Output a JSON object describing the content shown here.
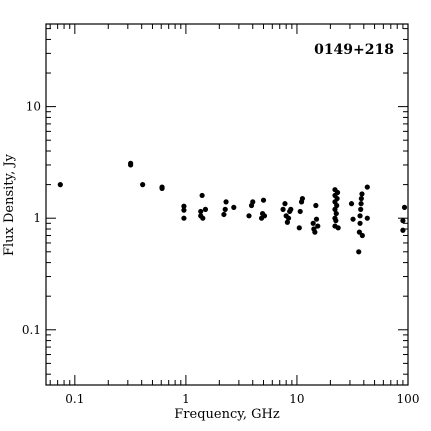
{
  "chart_data": {
    "type": "scatter",
    "title": "0149+218",
    "xlabel": "Frequency, GHz",
    "ylabel": "Flux Density, Jy",
    "x_scale": "log",
    "y_scale": "log",
    "xlim": [
      0.055,
      100
    ],
    "ylim": [
      0.032,
      55
    ],
    "x_ticks": [
      {
        "value": 0.1,
        "label": "0.1"
      },
      {
        "value": 1,
        "label": "1"
      },
      {
        "value": 10,
        "label": "10"
      },
      {
        "value": 100,
        "label": "100"
      }
    ],
    "y_ticks": [
      {
        "value": 0.1,
        "label": "0.1"
      },
      {
        "value": 1,
        "label": "1"
      },
      {
        "value": 10,
        "label": "10"
      }
    ],
    "grid": false,
    "series": [
      {
        "points": [
          [
            0.074,
            2.0
          ],
          [
            0.318,
            3.0
          ],
          [
            0.318,
            3.1
          ],
          [
            0.408,
            2.0
          ],
          [
            0.61,
            1.9
          ],
          [
            0.61,
            1.85
          ],
          [
            0.96,
            1.0
          ],
          [
            0.96,
            1.18
          ],
          [
            0.96,
            1.28
          ],
          [
            1.36,
            1.05
          ],
          [
            1.36,
            1.15
          ],
          [
            1.4,
            1.6
          ],
          [
            1.42,
            1.0
          ],
          [
            1.5,
            1.2
          ],
          [
            2.2,
            1.08
          ],
          [
            2.26,
            1.2
          ],
          [
            2.3,
            1.4
          ],
          [
            2.7,
            1.25
          ],
          [
            3.7,
            1.05
          ],
          [
            3.9,
            1.3
          ],
          [
            4.0,
            1.4
          ],
          [
            4.8,
            1.0
          ],
          [
            4.9,
            1.1
          ],
          [
            5.0,
            1.45
          ],
          [
            5.1,
            1.05
          ],
          [
            7.5,
            1.2
          ],
          [
            7.8,
            1.35
          ],
          [
            8.0,
            1.05
          ],
          [
            8.2,
            0.92
          ],
          [
            8.4,
            1.0
          ],
          [
            8.6,
            1.15
          ],
          [
            8.8,
            1.2
          ],
          [
            10.5,
            0.82
          ],
          [
            10.7,
            1.15
          ],
          [
            11.0,
            1.4
          ],
          [
            11.2,
            1.5
          ],
          [
            14.0,
            0.9
          ],
          [
            14.2,
            0.8
          ],
          [
            14.5,
            0.75
          ],
          [
            14.8,
            1.3
          ],
          [
            15.0,
            0.98
          ],
          [
            15.4,
            0.85
          ],
          [
            22.0,
            0.85
          ],
          [
            22.0,
            1.0
          ],
          [
            22.0,
            1.2
          ],
          [
            22.0,
            1.4
          ],
          [
            22.0,
            1.6
          ],
          [
            22.0,
            1.8
          ],
          [
            22.4,
            0.95
          ],
          [
            22.6,
            1.1
          ],
          [
            22.8,
            1.3
          ],
          [
            23.0,
            1.5
          ],
          [
            23.2,
            1.7
          ],
          [
            23.5,
            0.82
          ],
          [
            31.0,
            1.35
          ],
          [
            32.0,
            0.98
          ],
          [
            36.0,
            0.5
          ],
          [
            36.5,
            0.75
          ],
          [
            37.0,
            0.9
          ],
          [
            37.0,
            1.05
          ],
          [
            37.5,
            1.2
          ],
          [
            37.8,
            1.35
          ],
          [
            38.0,
            1.5
          ],
          [
            38.5,
            1.65
          ],
          [
            38.8,
            0.7
          ],
          [
            43.0,
            1.0
          ],
          [
            43.0,
            1.9
          ],
          [
            90.0,
            0.78
          ],
          [
            90.0,
            0.95
          ],
          [
            93.0,
            1.25
          ]
        ]
      }
    ]
  }
}
